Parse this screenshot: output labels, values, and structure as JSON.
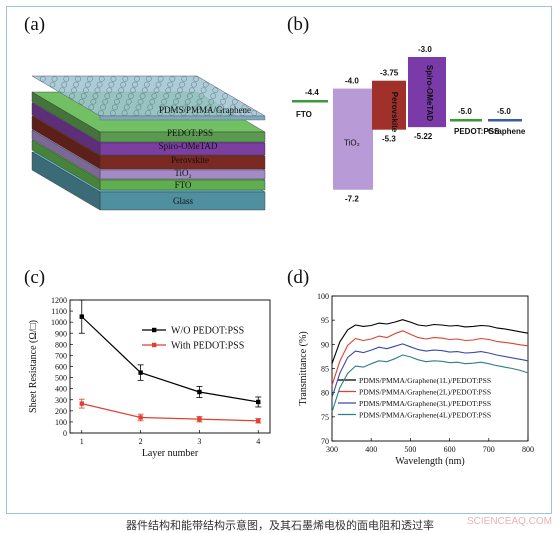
{
  "panel_labels": {
    "a": "(a)",
    "b": "(b)",
    "c": "(c)",
    "d": "(d)"
  },
  "device_layers": [
    {
      "name": "PDMS/PMMA/Graphene",
      "color": "#8fb8c8"
    },
    {
      "name": "PEDOT:PSS",
      "color": "#5a9a50"
    },
    {
      "name": "Spiro-OMeTAD",
      "color": "#7a3fa0"
    },
    {
      "name": "Perovskite",
      "color": "#7a2a20"
    },
    {
      "name": "TiO₂",
      "color": "#a58ac8"
    },
    {
      "name": "FTO",
      "color": "#5fae4f"
    },
    {
      "name": "Glass",
      "color": "#4f8f9f"
    }
  ],
  "energy_diagram": {
    "materials": [
      {
        "name": "FTO",
        "level": "-4.4",
        "color": "#3a9a3a"
      },
      {
        "name": "TiO₂",
        "top": "-4.0",
        "bottom": "-7.2",
        "color": "#b79ad6"
      },
      {
        "name": "Perovskite",
        "top": "-3.75",
        "bottom": "-5.3",
        "color": "#a0302a"
      },
      {
        "name": "Spiro-OMeTAD",
        "top": "-3.0",
        "bottom": "-5.22",
        "color": "#7a3aa8"
      },
      {
        "name": "PEDOT:PSS",
        "level": "-5.0",
        "color": "#3a9a3a"
      },
      {
        "name": "Graphene",
        "level": "-5.0",
        "color": "#3a5aa8"
      }
    ]
  },
  "chart_data": [
    {
      "type": "line",
      "xlabel": "Layer number",
      "ylabel": "Sheet Resistance (Ω/□)",
      "x": [
        1,
        2,
        3,
        4
      ],
      "xlim": [
        0.8,
        4.2
      ],
      "ylim": [
        0,
        1200
      ],
      "yticks": [
        0,
        100,
        200,
        300,
        400,
        500,
        600,
        700,
        800,
        900,
        1000,
        1100,
        1200
      ],
      "legend_position": "top-right",
      "series": [
        {
          "name": "W/O PEDOT:PSS",
          "values": [
            1050,
            545,
            370,
            280
          ],
          "errors": [
            150,
            70,
            50,
            45
          ],
          "color": "#000000"
        },
        {
          "name": "With PEDOT:PSS",
          "values": [
            265,
            140,
            125,
            110
          ],
          "errors": [
            40,
            30,
            25,
            20
          ],
          "color": "#e04030"
        }
      ]
    },
    {
      "type": "line",
      "xlabel": "Wavelength (nm)",
      "ylabel": "Transmittance (%)",
      "xlim": [
        300,
        800
      ],
      "ylim": [
        70,
        100
      ],
      "xticks": [
        300,
        400,
        500,
        600,
        700,
        800
      ],
      "yticks": [
        70,
        75,
        80,
        85,
        90,
        95,
        100
      ],
      "legend_position": "bottom-right",
      "x": [
        300,
        320,
        340,
        360,
        380,
        400,
        420,
        440,
        460,
        480,
        500,
        520,
        540,
        560,
        580,
        600,
        620,
        640,
        660,
        680,
        700,
        720,
        740,
        760,
        780,
        800
      ],
      "series": [
        {
          "name": "PDMS/PMMA/Graphene(1L)/PEDOT:PSS",
          "color": "#000000",
          "values": [
            86,
            90.5,
            93,
            94,
            93.7,
            93.9,
            94.4,
            94.2,
            94.6,
            95.1,
            94.6,
            94.0,
            93.8,
            94.1,
            94.0,
            93.8,
            93.9,
            93.6,
            93.7,
            93.9,
            93.8,
            93.4,
            93.2,
            92.9,
            92.6,
            92.3
          ]
        },
        {
          "name": "PDMS/PMMA/Graphene(2L)/PEDOT:PSS",
          "color": "#e04030",
          "values": [
            81.5,
            86.5,
            89.8,
            91.2,
            90.8,
            91.1,
            91.7,
            91.4,
            92.2,
            92.8,
            92.1,
            91.4,
            91.1,
            91.4,
            91.3,
            91.0,
            91.1,
            90.8,
            90.9,
            91.2,
            91.0,
            90.6,
            90.4,
            90.2,
            89.9,
            89.7
          ]
        },
        {
          "name": "PDMS/PMMA/Graphene(3L)/PEDOT:PSS",
          "color": "#3a4aa8",
          "values": [
            79,
            84,
            87.3,
            88.6,
            88.3,
            88.8,
            89.4,
            89.1,
            89.6,
            90.1,
            89.5,
            88.9,
            88.6,
            88.8,
            88.7,
            88.4,
            88.5,
            88.2,
            88.3,
            88.5,
            88.2,
            87.8,
            87.5,
            87.2,
            86.9,
            86.6
          ]
        },
        {
          "name": "PDMS/PMMA/Graphene(4L)/PEDOT:PSS",
          "color": "#2f7f88",
          "values": [
            76,
            81,
            84,
            85.5,
            85.3,
            86.0,
            86.6,
            86.4,
            87.0,
            87.8,
            87.4,
            86.8,
            86.4,
            86.6,
            86.5,
            86.2,
            86.3,
            86.0,
            86.1,
            86.3,
            86.0,
            85.6,
            85.3,
            85.0,
            84.6,
            84.1
          ]
        }
      ]
    }
  ],
  "caption": "器件结构和能带结构示意图，及其石墨烯电极的面电阻和透过率",
  "watermark": "SCIENCEAQ.COM"
}
